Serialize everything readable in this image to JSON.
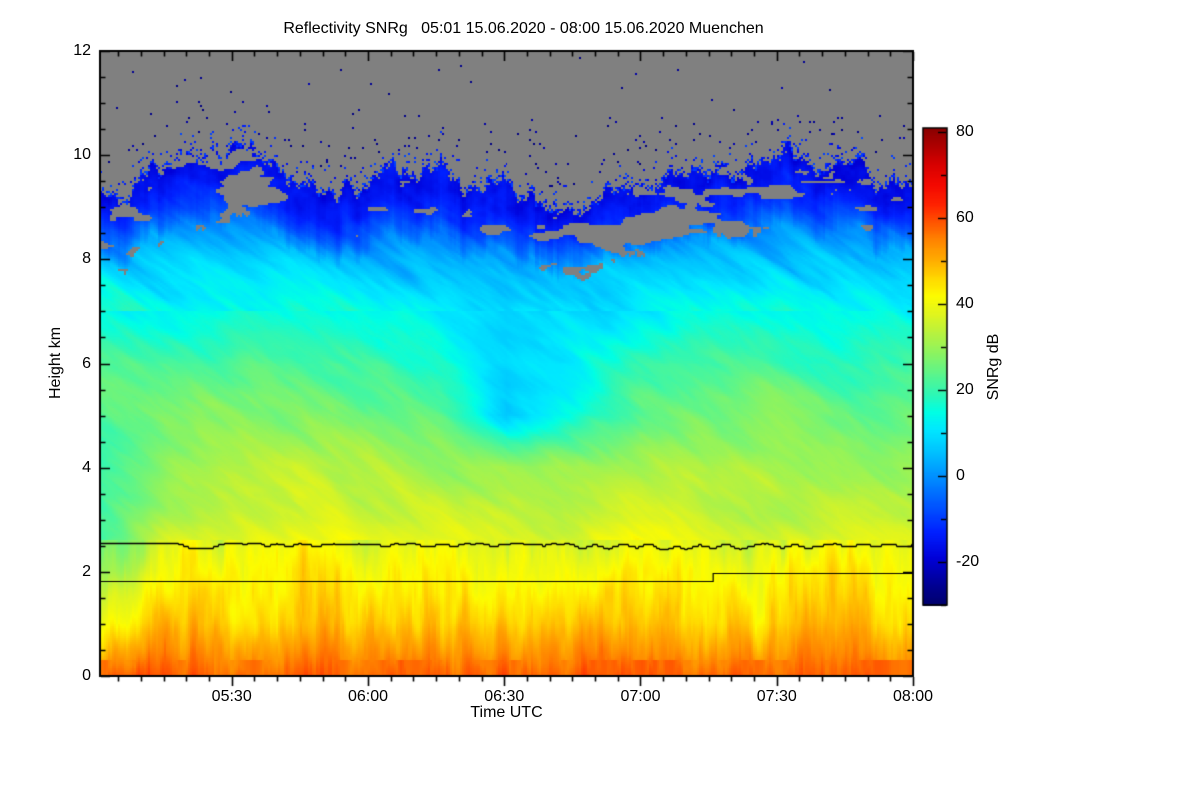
{
  "chart_data": {
    "type": "heatmap",
    "title": "Reflectivity SNRg   05:01 15.06.2020 - 08:00 15.06.2020 Muenchen",
    "instrument_quantity": "Reflectivity SNRg",
    "time_range": "05:01 15.06.2020 - 08:00 15.06.2020",
    "location": "Muenchen",
    "x_axis": {
      "label": "Time UTC",
      "start_min": 301,
      "end_min": 480,
      "major_ticks": [
        {
          "min": 330,
          "label": "05:30"
        },
        {
          "min": 360,
          "label": "06:00"
        },
        {
          "min": 390,
          "label": "06:30"
        },
        {
          "min": 420,
          "label": "07:00"
        },
        {
          "min": 450,
          "label": "07:30"
        },
        {
          "min": 480,
          "label": "08:00"
        }
      ],
      "minor_step_min": 5
    },
    "y_axis": {
      "label": "Height km",
      "min": 0,
      "max": 12,
      "major_ticks": [
        {
          "km": 0,
          "label": "0"
        },
        {
          "km": 2,
          "label": "2"
        },
        {
          "km": 4,
          "label": "4"
        },
        {
          "km": 6,
          "label": "6"
        },
        {
          "km": 8,
          "label": "8"
        },
        {
          "km": 10,
          "label": "10"
        },
        {
          "km": 12,
          "label": "12"
        }
      ],
      "minor_step_km": 0.5
    },
    "colorbar": {
      "label": "SNRg dB",
      "min": -30,
      "max": 81,
      "major_ticks": [
        {
          "value": 80,
          "label": "80"
        },
        {
          "value": 60,
          "label": "60"
        },
        {
          "value": 40,
          "label": "40"
        },
        {
          "value": 20,
          "label": "20"
        },
        {
          "value": 0,
          "label": "0"
        },
        {
          "value": -20,
          "label": "-20"
        }
      ],
      "minor_step": 10,
      "nodata_color": "#808080"
    },
    "colormap_stops": [
      [
        -30,
        "#00006a"
      ],
      [
        -24,
        "#0000a0"
      ],
      [
        -19,
        "#0000d8"
      ],
      [
        -13,
        "#0020ff"
      ],
      [
        -6,
        "#005cff"
      ],
      [
        0,
        "#0090ff"
      ],
      [
        6,
        "#00c4ff"
      ],
      [
        11,
        "#00e8ff"
      ],
      [
        15,
        "#00ffe4"
      ],
      [
        19,
        "#2df7b6"
      ],
      [
        24,
        "#5df58a"
      ],
      [
        29,
        "#8ff35e"
      ],
      [
        34,
        "#bdf23a"
      ],
      [
        38,
        "#e2f51c"
      ],
      [
        42,
        "#fdfc00"
      ],
      [
        46,
        "#ffd800"
      ],
      [
        50,
        "#ffb000"
      ],
      [
        55,
        "#ff8400"
      ],
      [
        59,
        "#ff5600"
      ],
      [
        63,
        "#ff2400"
      ],
      [
        68,
        "#f30800"
      ],
      [
        73,
        "#d40000"
      ],
      [
        77,
        "#ad0000"
      ],
      [
        81,
        "#8b0000"
      ]
    ],
    "grid": {
      "times_min": [
        301,
        315,
        330,
        345,
        360,
        375,
        390,
        405,
        420,
        435,
        450,
        465,
        480
      ],
      "heights_km": [
        0,
        1,
        2,
        3,
        4,
        5,
        6,
        7,
        8,
        9,
        10,
        11,
        12
      ],
      "rows_by_height": [
        [
          58,
          57,
          58,
          59,
          58,
          57,
          57,
          58,
          58,
          57,
          58,
          57,
          57
        ],
        [
          38,
          48,
          47,
          50,
          48,
          47,
          46,
          47,
          49,
          46,
          47,
          48,
          46
        ],
        [
          26,
          41,
          42,
          45,
          44,
          42,
          40,
          41,
          45,
          41,
          42,
          44,
          41
        ],
        [
          20,
          34,
          36,
          37,
          36,
          35,
          34,
          34,
          37,
          35,
          34,
          36,
          35
        ],
        [
          22,
          30,
          33,
          34,
          32,
          30,
          29,
          30,
          33,
          32,
          33,
          32,
          31
        ],
        [
          24,
          26,
          28,
          27,
          26,
          24,
          8,
          16,
          26,
          27,
          28,
          26,
          25
        ],
        [
          22,
          22,
          23,
          22,
          21,
          18,
          10,
          14,
          20,
          22,
          20,
          18,
          20
        ],
        [
          16,
          15,
          16,
          15,
          14,
          12,
          8,
          10,
          13,
          15,
          16,
          14,
          13
        ],
        [
          7,
          6,
          7,
          6,
          5,
          3,
          1,
          2,
          4,
          6,
          7,
          5,
          4
        ],
        [
          -6,
          -8,
          -6,
          -9,
          -8,
          -10,
          -12,
          -12,
          -9,
          -7,
          -5,
          -7,
          -8
        ],
        [
          -18,
          -16,
          -15,
          -18,
          -17,
          -16,
          -19,
          -20,
          -17,
          -15,
          -14,
          -16,
          -18
        ],
        [
          null,
          null,
          null,
          null,
          null,
          null,
          null,
          null,
          null,
          null,
          null,
          null,
          null
        ],
        [
          null,
          null,
          null,
          null,
          null,
          null,
          null,
          null,
          null,
          null,
          null,
          null,
          null
        ]
      ]
    },
    "cloud_top_km": [
      9.2,
      9.7,
      10.0,
      9.1,
      9.4,
      9.7,
      9.3,
      8.9,
      9.4,
      9.7,
      10.2,
      9.8,
      9.4
    ],
    "melting_layer": {
      "wiggly_points": [
        [
          301,
          2.56
        ],
        [
          318,
          2.56
        ],
        [
          321,
          2.46
        ],
        [
          326,
          2.48
        ],
        [
          329,
          2.55
        ],
        [
          336,
          2.55
        ],
        [
          338,
          2.5
        ],
        [
          340,
          2.55
        ],
        [
          343,
          2.49
        ],
        [
          345,
          2.55
        ],
        [
          349,
          2.5
        ],
        [
          352,
          2.55
        ],
        [
          356,
          2.52
        ],
        [
          360,
          2.55
        ],
        [
          364,
          2.49
        ],
        [
          366,
          2.54
        ],
        [
          370,
          2.55
        ],
        [
          373,
          2.48
        ],
        [
          376,
          2.54
        ],
        [
          379,
          2.5
        ],
        [
          382,
          2.55
        ],
        [
          385,
          2.55
        ],
        [
          388,
          2.49
        ],
        [
          391,
          2.54
        ],
        [
          394,
          2.55
        ],
        [
          398,
          2.5
        ],
        [
          401,
          2.55
        ],
        [
          404,
          2.55
        ],
        [
          407,
          2.46
        ],
        [
          410,
          2.52
        ],
        [
          413,
          2.45
        ],
        [
          416,
          2.53
        ],
        [
          419,
          2.47
        ],
        [
          422,
          2.54
        ],
        [
          425,
          2.42
        ],
        [
          428,
          2.5
        ],
        [
          430,
          2.44
        ],
        [
          433,
          2.52
        ],
        [
          436,
          2.46
        ],
        [
          439,
          2.53
        ],
        [
          442,
          2.45
        ],
        [
          445,
          2.52
        ],
        [
          448,
          2.55
        ],
        [
          451,
          2.47
        ],
        [
          454,
          2.53
        ],
        [
          457,
          2.46
        ],
        [
          460,
          2.51
        ],
        [
          463,
          2.55
        ],
        [
          466,
          2.48
        ],
        [
          469,
          2.53
        ],
        [
          472,
          2.5
        ],
        [
          475,
          2.54
        ],
        [
          478,
          2.49
        ],
        [
          480,
          2.52
        ]
      ],
      "step_line": [
        [
          [
            301,
            1.82
          ],
          [
            436,
            1.82
          ]
        ],
        [
          [
            436,
            1.98
          ],
          [
            480,
            1.98
          ]
        ]
      ]
    }
  }
}
